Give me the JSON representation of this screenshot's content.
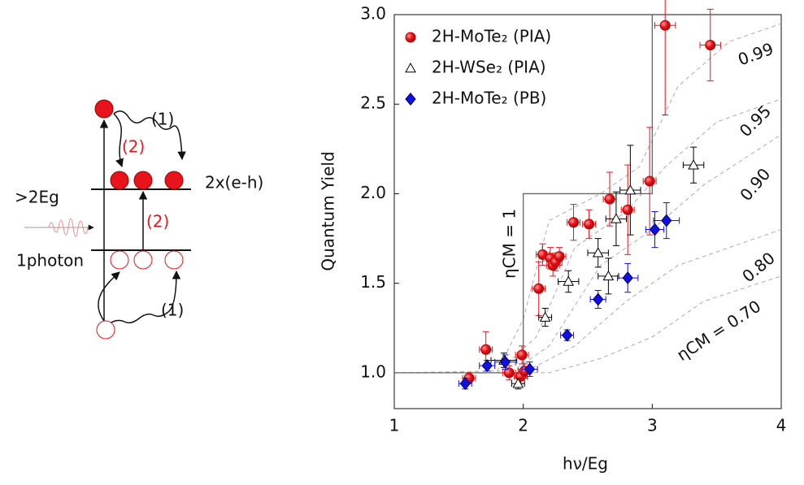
{
  "diagram": {
    "labels": {
      "upper_path": "(1)",
      "upper_path_red": "(2)",
      "pairs": "2x(e-h)",
      "energy": ">2Eg",
      "lower_path_red": "(2)",
      "photon": "1photon",
      "lower_path": "(1)"
    }
  },
  "chart_data": {
    "type": "scatter",
    "xlabel": "hν/Eg",
    "ylabel": "Quantum Yield",
    "xlim": [
      1,
      4
    ],
    "ylim": [
      0.8,
      3.0
    ],
    "xticks": [
      1,
      2,
      3,
      4
    ],
    "yticks": [
      {
        "value": 1,
        "label": "1.0"
      },
      {
        "value": 1.5,
        "label": "1.5"
      },
      {
        "value": 2,
        "label": "2.0"
      },
      {
        "value": 2.5,
        "label": "2.5"
      },
      {
        "value": 3,
        "label": "3.0"
      }
    ],
    "legend": "upper left",
    "series": [
      {
        "name": "2H-MoTe₂ (PIA)",
        "color": "#e8141b",
        "marker": "circle",
        "x": [
          1.58,
          1.71,
          1.89,
          1.98,
          1.99,
          2.01,
          2.12,
          2.15,
          2.21,
          2.23,
          2.25,
          2.28,
          2.39,
          2.51,
          2.67,
          2.81,
          2.98,
          3.1,
          3.45
        ],
        "values": [
          0.97,
          1.13,
          1.0,
          0.98,
          1.1,
          1.01,
          1.47,
          1.66,
          1.64,
          1.6,
          1.62,
          1.65,
          1.84,
          1.83,
          1.97,
          1.91,
          2.07,
          2.94,
          2.83
        ],
        "yerr": [
          0.03,
          0.1,
          0.04,
          0.04,
          0.05,
          0.04,
          0.15,
          0.06,
          0.06,
          0.06,
          0.05,
          0.05,
          0.1,
          0.08,
          0.15,
          0.25,
          0.3,
          0.5,
          0.2
        ],
        "xerr": [
          0.05,
          0.05,
          0.05,
          0.05,
          0.05,
          0.05,
          0.05,
          0.05,
          0.05,
          0.05,
          0.05,
          0.05,
          0.05,
          0.05,
          0.05,
          0.05,
          0.05,
          0.08,
          0.08
        ]
      },
      {
        "name": "2H-WSe₂ (PIA)",
        "color": "#000000",
        "marker": "triangle",
        "x": [
          1.96,
          1.85,
          2.17,
          2.35,
          2.58,
          2.66,
          2.72,
          2.83,
          3.32
        ],
        "values": [
          0.94,
          1.07,
          1.31,
          1.51,
          1.67,
          1.54,
          1.86,
          2.02,
          2.16
        ],
        "yerr": [
          0.03,
          0.04,
          0.05,
          0.06,
          0.08,
          0.1,
          0.15,
          0.25,
          0.1
        ],
        "xerr": [
          0.05,
          0.1,
          0.05,
          0.08,
          0.08,
          0.08,
          0.08,
          0.08,
          0.08
        ]
      },
      {
        "name": "2H-MoTe₂ (PB)",
        "color": "#1010e0",
        "marker": "diamond",
        "x": [
          1.55,
          1.72,
          1.86,
          2.05,
          2.34,
          2.58,
          2.81,
          3.02,
          3.11
        ],
        "values": [
          0.94,
          1.04,
          1.06,
          1.02,
          1.21,
          1.41,
          1.53,
          1.8,
          1.85
        ],
        "yerr": [
          0.03,
          0.03,
          0.04,
          0.04,
          0.03,
          0.05,
          0.08,
          0.1,
          0.1
        ],
        "xerr": [
          0.05,
          0.06,
          0.08,
          0.06,
          0.05,
          0.06,
          0.08,
          0.07,
          0.1
        ]
      }
    ],
    "step_line": {
      "label": "ηCM = 1",
      "x": [
        1,
        2,
        2,
        3,
        3
      ],
      "values": [
        1,
        1,
        2,
        2,
        3
      ]
    },
    "model_curves": [
      {
        "label": "0.99",
        "x": [
          1,
          1.8,
          2,
          2.2,
          2.6,
          2.9,
          3.2,
          3.6,
          4
        ],
        "values": [
          1,
          1.01,
          1.3,
          1.85,
          2.0,
          2.15,
          2.6,
          2.85,
          2.95
        ]
      },
      {
        "label": "0.95",
        "x": [
          1,
          1.8,
          2.1,
          2.4,
          2.8,
          3.1,
          3.5,
          4
        ],
        "values": [
          1,
          1,
          1.2,
          1.7,
          1.9,
          2.15,
          2.4,
          2.53
        ]
      },
      {
        "label": "0.90",
        "x": [
          1,
          1.9,
          2.2,
          2.6,
          3,
          3.4,
          4
        ],
        "values": [
          1,
          1,
          1.15,
          1.6,
          1.8,
          2.05,
          2.33
        ]
      },
      {
        "label": "0.80",
        "x": [
          1,
          2,
          2.4,
          2.8,
          3.2,
          3.6,
          4
        ],
        "values": [
          1,
          1,
          1.15,
          1.4,
          1.6,
          1.7,
          1.8
        ]
      },
      {
        "label": "ηCM = 0.70",
        "x": [
          1,
          2.2,
          2.6,
          3,
          3.4,
          4
        ],
        "values": [
          1,
          1,
          1.08,
          1.2,
          1.4,
          1.54
        ]
      }
    ]
  }
}
